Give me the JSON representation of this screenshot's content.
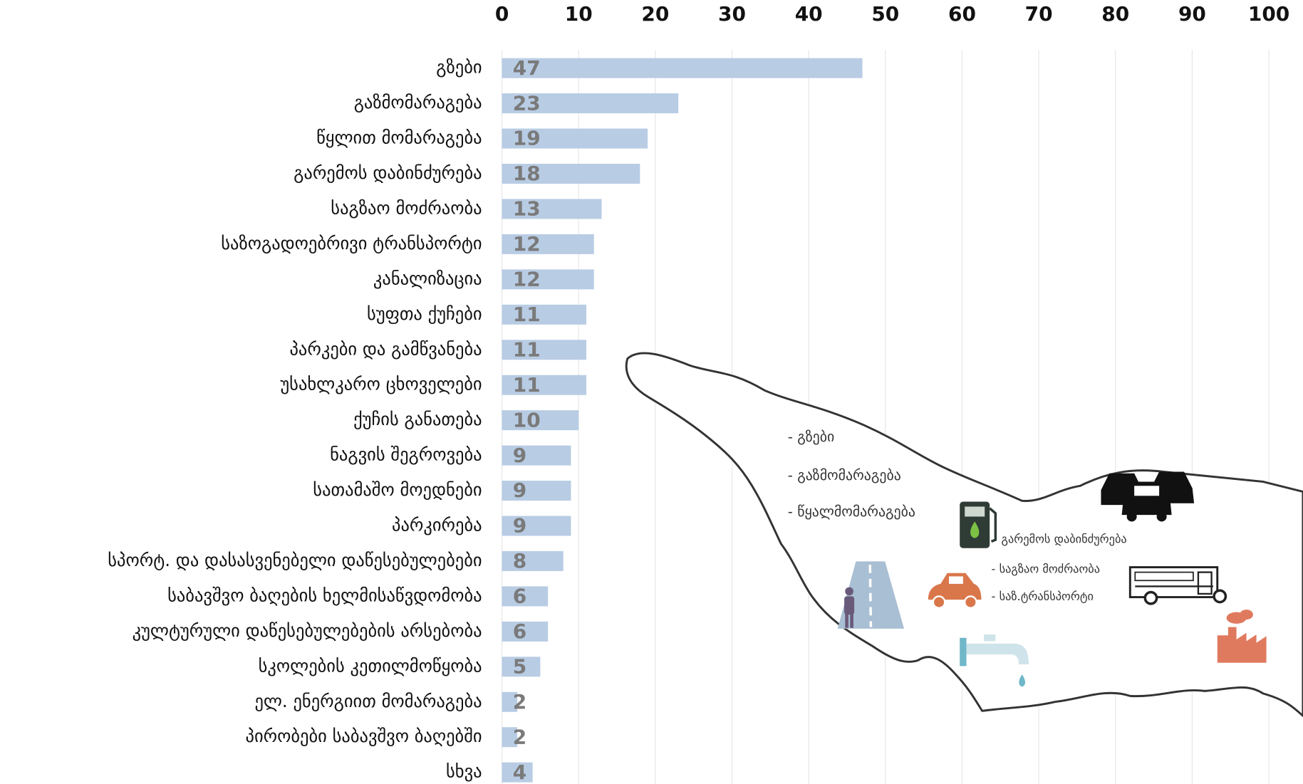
{
  "chart_data": {
    "type": "barh",
    "categories": [
      "გზები",
      "გაზმომარაგება",
      "წყლით მომარაგება",
      "გარემოს დაბინძურება",
      "საგზაო მოძრაობა",
      "საზოგადოებრივი ტრანსპორტი",
      "კანალიზაცია",
      "სუფთა ქუჩები",
      "პარკები და გამწვანება",
      "უსახლკარო ცხოველები",
      "ქუჩის განათება",
      "ნაგვის შეგროვება",
      "სათამაშო მოედნები",
      "პარკირება",
      "სპორტ. და დასასვენებელი დაწესებულებები",
      "საბავშვო ბაღების ხელმისაწვდომობა",
      "კულტურული დაწესებულებების არსებობა",
      "სკოლების კეთილმოწყობა",
      "ელ. ენერგიით მომარაგება",
      "პირობები საბავშვო ბაღებში",
      "სხვა"
    ],
    "values": [
      47,
      23,
      19,
      18,
      13,
      12,
      12,
      11,
      11,
      11,
      10,
      9,
      9,
      9,
      8,
      6,
      6,
      5,
      2,
      2,
      4
    ],
    "color": "#b8cce4",
    "xlim": [
      0,
      100
    ],
    "xticks": [
      0,
      10,
      20,
      30,
      40,
      50,
      60,
      70,
      80,
      90,
      100
    ],
    "grid": true
  },
  "map_labels": [
    "- გზები",
    "- გაზმომარაგება",
    "- წყალმომარაგება",
    "გარემოს დაბინძურება",
    "- საგზაო მოძრაობა",
    "- საზ.ტრანსპორტი"
  ]
}
